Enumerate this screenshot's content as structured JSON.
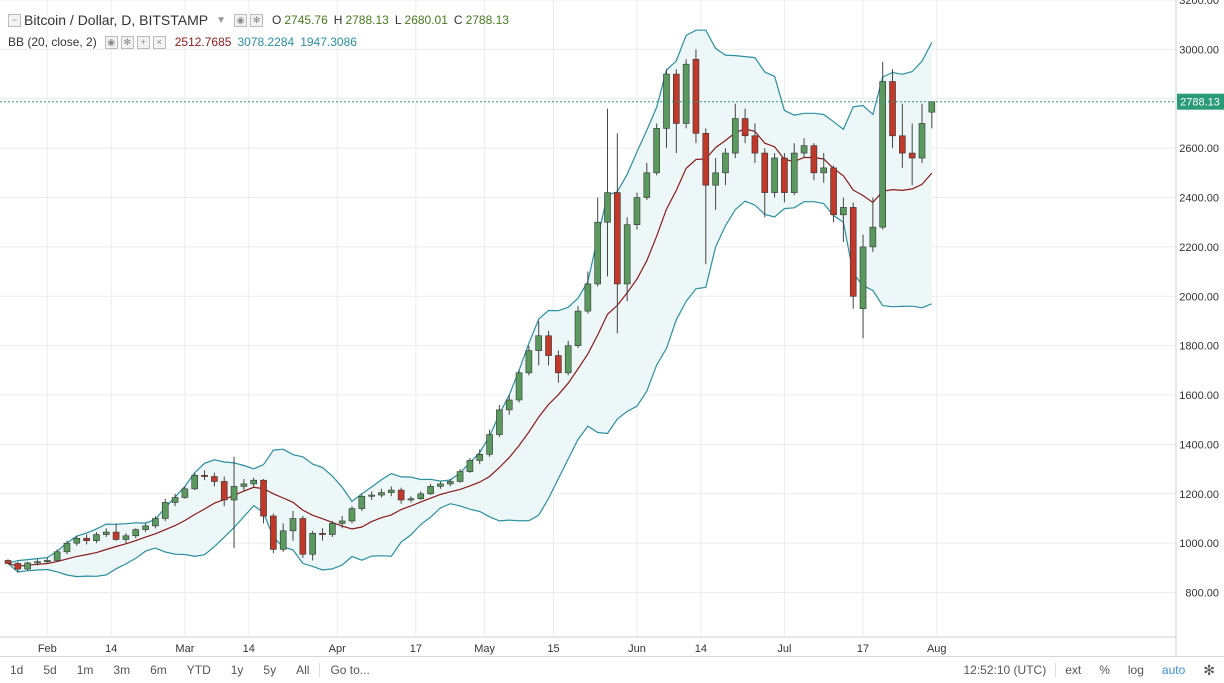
{
  "header": {
    "symbol_title": "Bitcoin / Dollar, D, BITSTAMP",
    "ohlc": [
      {
        "k": "O",
        "v": "2745.76"
      },
      {
        "k": "H",
        "v": "2788.13"
      },
      {
        "k": "L",
        "v": "2680.01"
      },
      {
        "k": "C",
        "v": "2788.13"
      }
    ]
  },
  "indicator": {
    "name": "BB (20, close, 2)",
    "values": [
      "2512.7685",
      "3078.2284",
      "1947.3086"
    ],
    "colors": [
      "#8b1a1a",
      "#2a8fa0",
      "#2a8fa0"
    ]
  },
  "last_price_label": "2788.13",
  "bottom_bar": {
    "ranges": [
      "1d",
      "5d",
      "1m",
      "3m",
      "6m",
      "YTD",
      "1y",
      "5y",
      "All"
    ],
    "goto": "Go to...",
    "time": "12:52:10 (UTC)",
    "right_controls": [
      "ext",
      "%",
      "log",
      "auto"
    ],
    "active_control": "auto"
  },
  "colors": {
    "up": "#5a9a5e",
    "down": "#c0392b",
    "band": "#2a8fa0",
    "basis": "#8b1a1a",
    "fill": "#eef7f7",
    "price_line": "#2a9a77"
  },
  "chart_data": {
    "type": "candlestick",
    "title": "Bitcoin / Dollar, D, BITSTAMP",
    "x_ticks": [
      "Feb",
      "14",
      "Mar",
      "14",
      "Apr",
      "17",
      "May",
      "15",
      "Jun",
      "14",
      "Jul",
      "17",
      "Aug"
    ],
    "y_ticks": [
      800,
      1000,
      1200,
      1400,
      1600,
      1800,
      2000,
      2200,
      2400,
      2600,
      2800,
      3000,
      3200
    ],
    "ylim": [
      620,
      3200
    ],
    "last_price": 2788.13,
    "grid": true,
    "candles": [
      {
        "d": "2017-01-24",
        "o": 930,
        "h": 935,
        "l": 915,
        "c": 918
      },
      {
        "d": "2017-01-26",
        "o": 918,
        "h": 925,
        "l": 880,
        "c": 895
      },
      {
        "d": "2017-01-28",
        "o": 895,
        "h": 925,
        "l": 890,
        "c": 920
      },
      {
        "d": "2017-01-30",
        "o": 920,
        "h": 935,
        "l": 910,
        "c": 925
      },
      {
        "d": "2017-02-01",
        "o": 925,
        "h": 940,
        "l": 920,
        "c": 930
      },
      {
        "d": "2017-02-03",
        "o": 930,
        "h": 975,
        "l": 925,
        "c": 965
      },
      {
        "d": "2017-02-05",
        "o": 965,
        "h": 1010,
        "l": 955,
        "c": 1000
      },
      {
        "d": "2017-02-07",
        "o": 1000,
        "h": 1030,
        "l": 990,
        "c": 1020
      },
      {
        "d": "2017-02-09",
        "o": 1020,
        "h": 1035,
        "l": 995,
        "c": 1010
      },
      {
        "d": "2017-02-11",
        "o": 1010,
        "h": 1045,
        "l": 1000,
        "c": 1035
      },
      {
        "d": "2017-02-13",
        "o": 1035,
        "h": 1060,
        "l": 1025,
        "c": 1045
      },
      {
        "d": "2017-02-15",
        "o": 1045,
        "h": 1080,
        "l": 1010,
        "c": 1015
      },
      {
        "d": "2017-02-17",
        "o": 1015,
        "h": 1040,
        "l": 1000,
        "c": 1030
      },
      {
        "d": "2017-02-19",
        "o": 1030,
        "h": 1060,
        "l": 1020,
        "c": 1055
      },
      {
        "d": "2017-02-21",
        "o": 1055,
        "h": 1080,
        "l": 1045,
        "c": 1070
      },
      {
        "d": "2017-02-23",
        "o": 1070,
        "h": 1110,
        "l": 1060,
        "c": 1100
      },
      {
        "d": "2017-02-25",
        "o": 1100,
        "h": 1180,
        "l": 1090,
        "c": 1165
      },
      {
        "d": "2017-02-27",
        "o": 1165,
        "h": 1200,
        "l": 1150,
        "c": 1185
      },
      {
        "d": "2017-03-01",
        "o": 1185,
        "h": 1230,
        "l": 1180,
        "c": 1220
      },
      {
        "d": "2017-03-03",
        "o": 1220,
        "h": 1285,
        "l": 1215,
        "c": 1275
      },
      {
        "d": "2017-03-05",
        "o": 1275,
        "h": 1295,
        "l": 1255,
        "c": 1270
      },
      {
        "d": "2017-03-07",
        "o": 1270,
        "h": 1285,
        "l": 1230,
        "c": 1250
      },
      {
        "d": "2017-03-09",
        "o": 1250,
        "h": 1270,
        "l": 1150,
        "c": 1175
      },
      {
        "d": "2017-03-11",
        "o": 1175,
        "h": 1350,
        "l": 980,
        "c": 1230
      },
      {
        "d": "2017-03-13",
        "o": 1230,
        "h": 1260,
        "l": 1210,
        "c": 1240
      },
      {
        "d": "2017-03-15",
        "o": 1240,
        "h": 1265,
        "l": 1225,
        "c": 1255
      },
      {
        "d": "2017-03-17",
        "o": 1255,
        "h": 1260,
        "l": 1080,
        "c": 1110
      },
      {
        "d": "2017-03-19",
        "o": 1110,
        "h": 1120,
        "l": 960,
        "c": 975
      },
      {
        "d": "2017-03-21",
        "o": 975,
        "h": 1080,
        "l": 965,
        "c": 1050
      },
      {
        "d": "2017-03-23",
        "o": 1050,
        "h": 1130,
        "l": 1010,
        "c": 1100
      },
      {
        "d": "2017-03-25",
        "o": 1100,
        "h": 1110,
        "l": 940,
        "c": 955
      },
      {
        "d": "2017-03-27",
        "o": 955,
        "h": 1050,
        "l": 930,
        "c": 1040
      },
      {
        "d": "2017-03-29",
        "o": 1040,
        "h": 1060,
        "l": 1010,
        "c": 1035
      },
      {
        "d": "2017-03-31",
        "o": 1035,
        "h": 1090,
        "l": 1025,
        "c": 1080
      },
      {
        "d": "2017-04-02",
        "o": 1080,
        "h": 1110,
        "l": 1060,
        "c": 1090
      },
      {
        "d": "2017-04-04",
        "o": 1090,
        "h": 1150,
        "l": 1080,
        "c": 1140
      },
      {
        "d": "2017-04-06",
        "o": 1140,
        "h": 1200,
        "l": 1130,
        "c": 1190
      },
      {
        "d": "2017-04-08",
        "o": 1190,
        "h": 1210,
        "l": 1175,
        "c": 1195
      },
      {
        "d": "2017-04-10",
        "o": 1195,
        "h": 1220,
        "l": 1185,
        "c": 1205
      },
      {
        "d": "2017-04-12",
        "o": 1205,
        "h": 1230,
        "l": 1190,
        "c": 1215
      },
      {
        "d": "2017-04-14",
        "o": 1215,
        "h": 1225,
        "l": 1160,
        "c": 1175
      },
      {
        "d": "2017-04-16",
        "o": 1175,
        "h": 1190,
        "l": 1165,
        "c": 1180
      },
      {
        "d": "2017-04-18",
        "o": 1180,
        "h": 1210,
        "l": 1175,
        "c": 1200
      },
      {
        "d": "2017-04-20",
        "o": 1200,
        "h": 1240,
        "l": 1195,
        "c": 1230
      },
      {
        "d": "2017-04-22",
        "o": 1230,
        "h": 1250,
        "l": 1220,
        "c": 1240
      },
      {
        "d": "2017-04-24",
        "o": 1240,
        "h": 1260,
        "l": 1230,
        "c": 1250
      },
      {
        "d": "2017-04-26",
        "o": 1250,
        "h": 1300,
        "l": 1245,
        "c": 1290
      },
      {
        "d": "2017-04-28",
        "o": 1290,
        "h": 1345,
        "l": 1285,
        "c": 1335
      },
      {
        "d": "2017-04-30",
        "o": 1335,
        "h": 1380,
        "l": 1320,
        "c": 1360
      },
      {
        "d": "2017-05-02",
        "o": 1360,
        "h": 1460,
        "l": 1350,
        "c": 1440
      },
      {
        "d": "2017-05-04",
        "o": 1440,
        "h": 1560,
        "l": 1430,
        "c": 1540
      },
      {
        "d": "2017-05-06",
        "o": 1540,
        "h": 1600,
        "l": 1520,
        "c": 1580
      },
      {
        "d": "2017-05-08",
        "o": 1580,
        "h": 1700,
        "l": 1570,
        "c": 1690
      },
      {
        "d": "2017-05-10",
        "o": 1690,
        "h": 1800,
        "l": 1680,
        "c": 1780
      },
      {
        "d": "2017-05-12",
        "o": 1780,
        "h": 1900,
        "l": 1720,
        "c": 1840
      },
      {
        "d": "2017-05-14",
        "o": 1840,
        "h": 1860,
        "l": 1720,
        "c": 1760
      },
      {
        "d": "2017-05-16",
        "o": 1760,
        "h": 1780,
        "l": 1650,
        "c": 1690
      },
      {
        "d": "2017-05-18",
        "o": 1690,
        "h": 1820,
        "l": 1680,
        "c": 1800
      },
      {
        "d": "2017-05-20",
        "o": 1800,
        "h": 1960,
        "l": 1790,
        "c": 1940
      },
      {
        "d": "2017-05-22",
        "o": 1940,
        "h": 2100,
        "l": 1930,
        "c": 2050
      },
      {
        "d": "2017-05-24",
        "o": 2050,
        "h": 2400,
        "l": 2040,
        "c": 2300
      },
      {
        "d": "2017-05-26",
        "o": 2300,
        "h": 2760,
        "l": 2080,
        "c": 2420
      },
      {
        "d": "2017-05-28",
        "o": 2420,
        "h": 2660,
        "l": 1850,
        "c": 2050
      },
      {
        "d": "2017-05-30",
        "o": 2050,
        "h": 2320,
        "l": 1980,
        "c": 2290
      },
      {
        "d": "2017-06-01",
        "o": 2290,
        "h": 2420,
        "l": 2270,
        "c": 2400
      },
      {
        "d": "2017-06-03",
        "o": 2400,
        "h": 2540,
        "l": 2390,
        "c": 2500
      },
      {
        "d": "2017-06-05",
        "o": 2500,
        "h": 2700,
        "l": 2490,
        "c": 2680
      },
      {
        "d": "2017-06-07",
        "o": 2680,
        "h": 2920,
        "l": 2600,
        "c": 2900
      },
      {
        "d": "2017-06-09",
        "o": 2900,
        "h": 2920,
        "l": 2580,
        "c": 2700
      },
      {
        "d": "2017-06-11",
        "o": 2700,
        "h": 2960,
        "l": 2680,
        "c": 2940
      },
      {
        "d": "2017-06-13",
        "o": 2960,
        "h": 3000,
        "l": 2620,
        "c": 2660
      },
      {
        "d": "2017-06-15",
        "o": 2660,
        "h": 2680,
        "l": 2130,
        "c": 2450
      },
      {
        "d": "2017-06-17",
        "o": 2450,
        "h": 2560,
        "l": 2350,
        "c": 2500
      },
      {
        "d": "2017-06-19",
        "o": 2500,
        "h": 2600,
        "l": 2450,
        "c": 2580
      },
      {
        "d": "2017-06-21",
        "o": 2580,
        "h": 2780,
        "l": 2560,
        "c": 2720
      },
      {
        "d": "2017-06-23",
        "o": 2720,
        "h": 2760,
        "l": 2620,
        "c": 2650
      },
      {
        "d": "2017-06-25",
        "o": 2650,
        "h": 2700,
        "l": 2540,
        "c": 2580
      },
      {
        "d": "2017-06-27",
        "o": 2580,
        "h": 2600,
        "l": 2320,
        "c": 2420
      },
      {
        "d": "2017-06-29",
        "o": 2420,
        "h": 2580,
        "l": 2400,
        "c": 2560
      },
      {
        "d": "2017-07-01",
        "o": 2560,
        "h": 2580,
        "l": 2380,
        "c": 2420
      },
      {
        "d": "2017-07-03",
        "o": 2420,
        "h": 2620,
        "l": 2410,
        "c": 2580
      },
      {
        "d": "2017-07-05",
        "o": 2580,
        "h": 2640,
        "l": 2560,
        "c": 2610
      },
      {
        "d": "2017-07-07",
        "o": 2610,
        "h": 2620,
        "l": 2470,
        "c": 2500
      },
      {
        "d": "2017-07-09",
        "o": 2500,
        "h": 2580,
        "l": 2460,
        "c": 2520
      },
      {
        "d": "2017-07-11",
        "o": 2520,
        "h": 2530,
        "l": 2300,
        "c": 2330
      },
      {
        "d": "2017-07-13",
        "o": 2330,
        "h": 2400,
        "l": 2220,
        "c": 2360
      },
      {
        "d": "2017-07-15",
        "o": 2360,
        "h": 2380,
        "l": 1950,
        "c": 2000
      },
      {
        "d": "2017-07-17",
        "o": 1950,
        "h": 2250,
        "l": 1830,
        "c": 2200
      },
      {
        "d": "2017-07-19",
        "o": 2200,
        "h": 2400,
        "l": 2180,
        "c": 2280
      },
      {
        "d": "2017-07-21",
        "o": 2280,
        "h": 2950,
        "l": 2270,
        "c": 2870
      },
      {
        "d": "2017-07-23",
        "o": 2870,
        "h": 2920,
        "l": 2600,
        "c": 2650
      },
      {
        "d": "2017-07-25",
        "o": 2650,
        "h": 2780,
        "l": 2520,
        "c": 2580
      },
      {
        "d": "2017-07-27",
        "o": 2580,
        "h": 2700,
        "l": 2450,
        "c": 2560
      },
      {
        "d": "2017-07-29",
        "o": 2560,
        "h": 2780,
        "l": 2540,
        "c": 2700
      },
      {
        "d": "2017-07-31",
        "o": 2745.76,
        "h": 2788.13,
        "l": 2680.01,
        "c": 2788.13
      }
    ]
  }
}
